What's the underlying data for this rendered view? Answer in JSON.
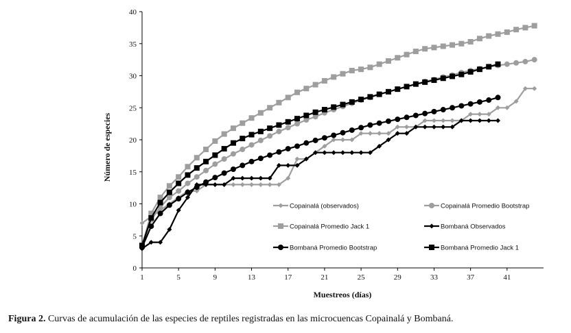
{
  "caption": {
    "label": "Figura 2.",
    "text": " Curvas de acumulación de las especies de reptiles registradas en las microcuencas Copainalá y Bombaná."
  },
  "chart_data": {
    "type": "line",
    "xlabel": "Muestreos (días)",
    "ylabel": "Número de especies",
    "xlim": [
      1,
      45
    ],
    "ylim": [
      0,
      40
    ],
    "xticks": [
      1,
      5,
      9,
      13,
      17,
      21,
      25,
      29,
      33,
      37,
      41
    ],
    "yticks": [
      0,
      5,
      10,
      15,
      20,
      25,
      30,
      35,
      40
    ],
    "grid": false,
    "legend_position": "bottom-right-inside",
    "series": [
      {
        "name": "Copainalá (observados)",
        "color": "#9e9e9e",
        "marker": "diamond",
        "marker_size": 7,
        "x": [
          1,
          2,
          3,
          4,
          5,
          6,
          7,
          8,
          9,
          10,
          11,
          12,
          13,
          14,
          15,
          16,
          17,
          18,
          19,
          20,
          21,
          22,
          23,
          24,
          25,
          26,
          27,
          28,
          29,
          30,
          31,
          32,
          33,
          34,
          35,
          36,
          37,
          38,
          39,
          40,
          41,
          42,
          43,
          44
        ],
        "y": [
          7,
          8,
          9,
          10,
          11,
          12,
          12,
          13,
          13,
          13,
          13,
          13,
          13,
          13,
          13,
          13,
          14,
          17,
          17,
          18,
          19,
          20,
          20,
          20,
          21,
          21,
          21,
          21,
          22,
          22,
          22,
          23,
          23,
          23,
          23,
          23,
          24,
          24,
          24,
          25,
          25,
          26,
          28,
          28
        ]
      },
      {
        "name": "Copainalá Promedio Bootstrap",
        "color": "#9e9e9e",
        "marker": "circle",
        "marker_size": 8,
        "x": [
          1,
          2,
          3,
          4,
          5,
          6,
          7,
          8,
          9,
          10,
          11,
          12,
          13,
          14,
          15,
          16,
          17,
          18,
          19,
          20,
          21,
          22,
          23,
          24,
          25,
          26,
          27,
          28,
          29,
          30,
          31,
          32,
          33,
          34,
          35,
          36,
          37,
          38,
          39,
          40,
          41,
          42,
          43,
          44
        ],
        "y": [
          3.5,
          7.5,
          9.5,
          11,
          12,
          13.2,
          14.2,
          15.2,
          16.2,
          17,
          17.8,
          18.5,
          19.2,
          19.9,
          20.6,
          21.3,
          21.9,
          22.5,
          23.1,
          23.6,
          24.2,
          24.7,
          25.2,
          25.7,
          26.2,
          26.6,
          27.1,
          27.5,
          27.9,
          28.3,
          28.7,
          29.1,
          29.4,
          29.8,
          30.1,
          30.5,
          30.8,
          31.1,
          31.4,
          31.6,
          31.8,
          32,
          32.2,
          32.5
        ]
      },
      {
        "name": "Copainalá Promedio Jack 1",
        "color": "#9e9e9e",
        "marker": "square",
        "marker_size": 8,
        "x": [
          1,
          2,
          3,
          4,
          5,
          6,
          7,
          8,
          9,
          10,
          11,
          12,
          13,
          14,
          15,
          16,
          17,
          18,
          19,
          20,
          21,
          22,
          23,
          24,
          25,
          26,
          27,
          28,
          29,
          30,
          31,
          32,
          33,
          34,
          35,
          36,
          37,
          38,
          39,
          40,
          41,
          42,
          43,
          44
        ],
        "y": [
          3.5,
          8.5,
          11,
          12.8,
          14.2,
          15.8,
          17.2,
          18.5,
          19.8,
          20.9,
          21.8,
          22.6,
          23.4,
          24.2,
          25,
          25.8,
          26.6,
          27.4,
          28,
          28.6,
          29.2,
          29.8,
          30.3,
          30.8,
          31,
          31.3,
          31.8,
          32.3,
          32.8,
          33.3,
          33.8,
          34.2,
          34.4,
          34.6,
          34.8,
          35,
          35.3,
          35.8,
          36.2,
          36.5,
          36.8,
          37.2,
          37.5,
          37.8
        ]
      },
      {
        "name": "Bombaná Observados",
        "color": "#000000",
        "marker": "diamond",
        "marker_size": 7,
        "x": [
          1,
          2,
          3,
          4,
          5,
          6,
          7,
          8,
          9,
          10,
          11,
          12,
          13,
          14,
          15,
          16,
          17,
          18,
          19,
          20,
          21,
          22,
          23,
          24,
          25,
          26,
          27,
          28,
          29,
          30,
          31,
          32,
          33,
          34,
          35,
          36,
          37,
          38,
          39,
          40
        ],
        "y": [
          3,
          4,
          4,
          6,
          9,
          11,
          13,
          13,
          13,
          13,
          14,
          14,
          14,
          14,
          14,
          16,
          16,
          16,
          17,
          18,
          18,
          18,
          18,
          18,
          18,
          18,
          19,
          20,
          21,
          21,
          22,
          22,
          22,
          22,
          22,
          23,
          23,
          23,
          23,
          23
        ]
      },
      {
        "name": "Bombaná Promedio Bootstrap",
        "color": "#000000",
        "marker": "circle",
        "marker_size": 8,
        "x": [
          1,
          2,
          3,
          4,
          5,
          6,
          7,
          8,
          9,
          10,
          11,
          12,
          13,
          14,
          15,
          16,
          17,
          18,
          19,
          20,
          21,
          22,
          23,
          24,
          25,
          26,
          27,
          28,
          29,
          30,
          31,
          32,
          33,
          34,
          35,
          36,
          37,
          38,
          39,
          40
        ],
        "y": [
          3.2,
          6.5,
          8.5,
          9.8,
          10.8,
          11.8,
          12.6,
          13.4,
          14.1,
          14.8,
          15.4,
          16,
          16.6,
          17.1,
          17.6,
          18.1,
          18.6,
          19,
          19.5,
          19.9,
          20.3,
          20.7,
          21.1,
          21.5,
          21.9,
          22.3,
          22.6,
          22.9,
          23.2,
          23.5,
          23.8,
          24.1,
          24.4,
          24.7,
          25,
          25.3,
          25.6,
          25.9,
          26.2,
          26.6
        ]
      },
      {
        "name": "Bombaná Promedio Jack 1",
        "color": "#000000",
        "marker": "square",
        "marker_size": 8,
        "x": [
          1,
          2,
          3,
          4,
          5,
          6,
          7,
          8,
          9,
          10,
          11,
          12,
          13,
          14,
          15,
          16,
          17,
          18,
          19,
          20,
          21,
          22,
          23,
          24,
          25,
          26,
          27,
          28,
          29,
          30,
          31,
          32,
          33,
          34,
          35,
          36,
          37,
          38,
          39,
          40
        ],
        "y": [
          3.5,
          7.8,
          10.2,
          11.8,
          13.2,
          14.5,
          15.6,
          16.6,
          17.6,
          18.6,
          19.5,
          20.2,
          20.8,
          21.3,
          21.8,
          22.3,
          22.8,
          23.3,
          23.8,
          24.3,
          24.7,
          25.1,
          25.5,
          25.9,
          26.3,
          26.7,
          27.1,
          27.5,
          27.9,
          28.3,
          28.7,
          29,
          29.3,
          29.6,
          29.9,
          30.2,
          30.6,
          31,
          31.4,
          31.8
        ]
      }
    ]
  }
}
